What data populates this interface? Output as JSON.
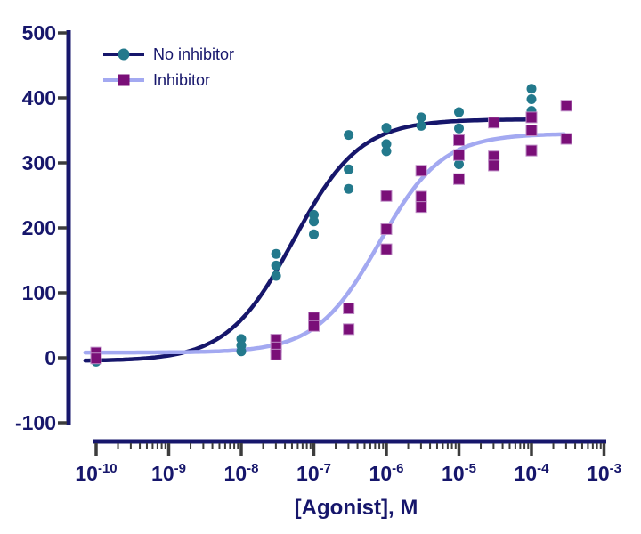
{
  "chart_data": {
    "type": "scatter",
    "title": "",
    "xlabel": "[Agonist], M",
    "ylabel": "",
    "x_scale": "log10",
    "x_tick_exponents": [
      -10,
      -9,
      -8,
      -7,
      -6,
      -5,
      -4,
      -3
    ],
    "y_ticks": [
      500,
      400,
      300,
      200,
      100,
      0,
      -100
    ],
    "ylim": [
      -100,
      500
    ],
    "xlim_log": [
      -10.3,
      -3
    ],
    "grid": false,
    "legend_position": "top-left",
    "colors": {
      "axis": "#16166B",
      "tick": "#3C3C3C",
      "text": "#16166B",
      "background": "#FFFFFF"
    },
    "series": [
      {
        "name": "No inhibitor",
        "marker": "circle",
        "marker_color": "#23798C",
        "curve_color": "#16166B",
        "points_log_x_y": [
          [
            -10,
            0
          ],
          [
            -10,
            -6
          ],
          [
            -8,
            29
          ],
          [
            -8,
            19
          ],
          [
            -8,
            10
          ],
          [
            -7.52,
            160
          ],
          [
            -7.52,
            142
          ],
          [
            -7.52,
            126
          ],
          [
            -7,
            220
          ],
          [
            -7,
            210
          ],
          [
            -7,
            190
          ],
          [
            -6.52,
            343
          ],
          [
            -6.52,
            290
          ],
          [
            -6.52,
            260
          ],
          [
            -6,
            354
          ],
          [
            -6,
            329
          ],
          [
            -6,
            318
          ],
          [
            -5.52,
            370
          ],
          [
            -5.52,
            357
          ],
          [
            -5,
            378
          ],
          [
            -5,
            353
          ],
          [
            -5,
            298
          ],
          [
            -4,
            414
          ],
          [
            -4,
            398
          ],
          [
            -4,
            380
          ]
        ],
        "fit": {
          "model": "4PL",
          "bottom": -5,
          "top": 367,
          "logEC50": -7.28,
          "hill": 0.95,
          "log_x_start": -10.15,
          "log_x_end": -4.0
        }
      },
      {
        "name": "Inhibitor",
        "marker": "square",
        "marker_color": "#7A0F78",
        "marker_edge_color": "#BE8CC6",
        "curve_color": "#A3A9F1",
        "points_log_x_y": [
          [
            -10,
            8
          ],
          [
            -10,
            -1
          ],
          [
            -7.52,
            28
          ],
          [
            -7.52,
            16
          ],
          [
            -7.52,
            5
          ],
          [
            -7,
            62
          ],
          [
            -7,
            49
          ],
          [
            -6.52,
            76
          ],
          [
            -6.52,
            44
          ],
          [
            -6,
            249
          ],
          [
            -6,
            198
          ],
          [
            -6,
            167
          ],
          [
            -5.52,
            288
          ],
          [
            -5.52,
            248
          ],
          [
            -5.52,
            232
          ],
          [
            -5,
            335
          ],
          [
            -5,
            312
          ],
          [
            -5,
            275
          ],
          [
            -4.52,
            362
          ],
          [
            -4.52,
            310
          ],
          [
            -4.52,
            296
          ],
          [
            -4,
            370
          ],
          [
            -4,
            350
          ],
          [
            -4,
            319
          ],
          [
            -3.52,
            388
          ],
          [
            -3.52,
            337
          ]
        ],
        "fit": {
          "model": "4PL",
          "bottom": 8,
          "top": 345,
          "logEC50": -6.1,
          "hill": 1.0,
          "log_x_start": -10.15,
          "log_x_end": -3.52
        }
      }
    ]
  }
}
